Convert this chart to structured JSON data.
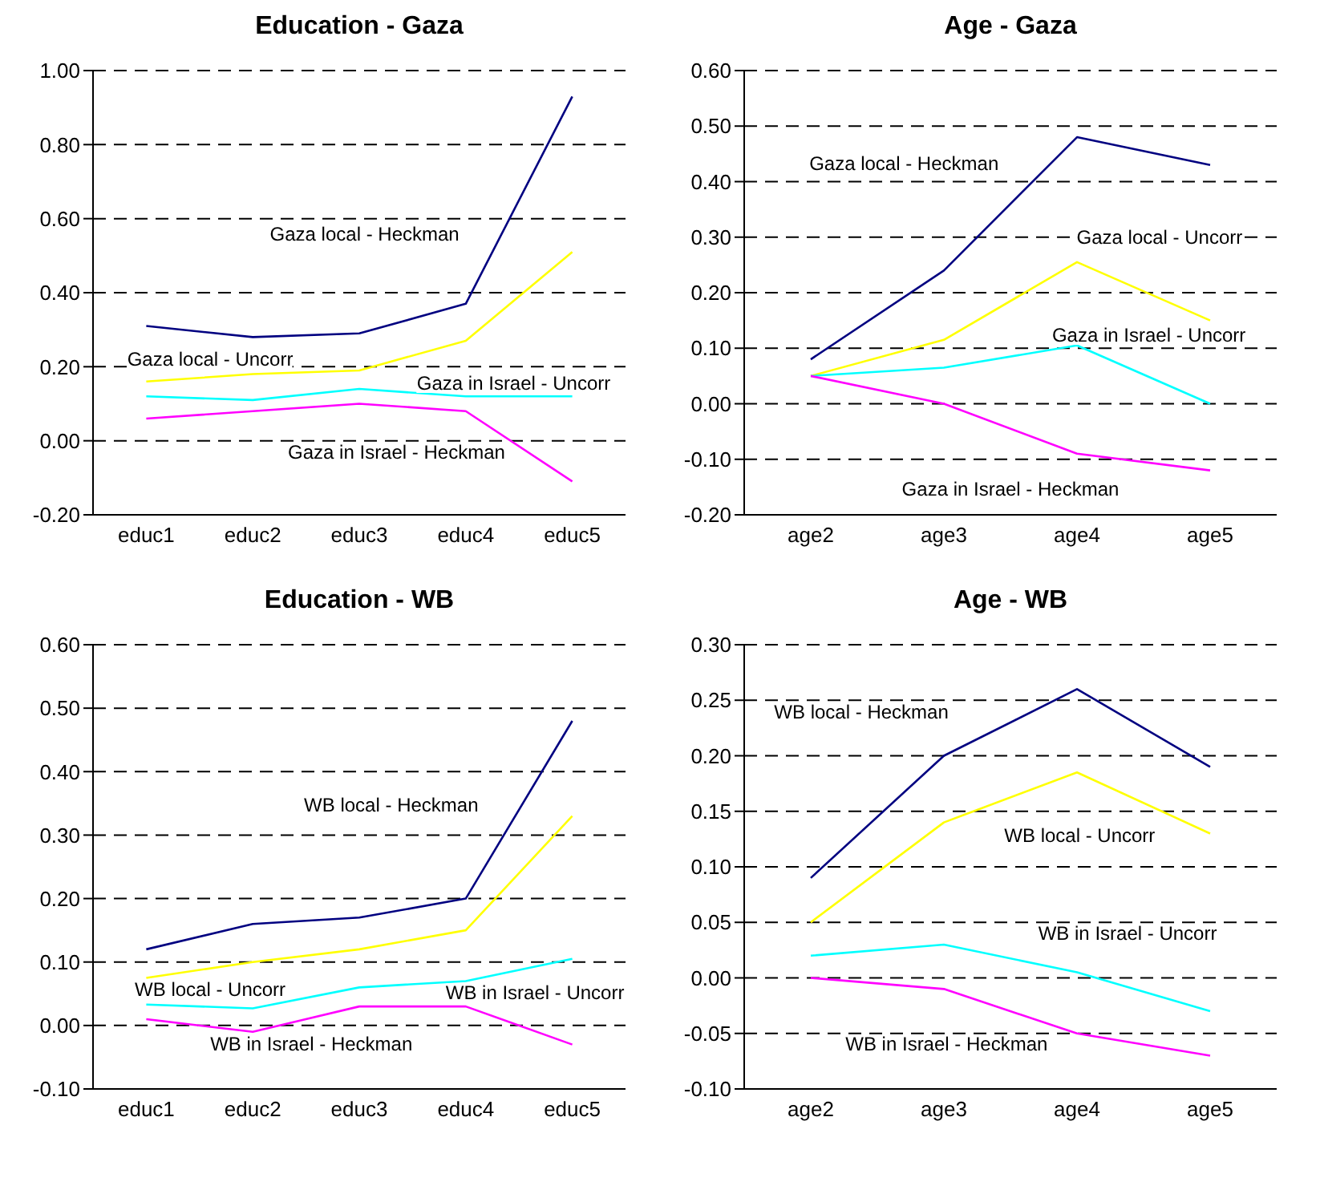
{
  "chart_data": [
    {
      "type": "line",
      "title": "Education - Gaza",
      "categories": [
        "educ1",
        "educ2",
        "educ3",
        "educ4",
        "educ5"
      ],
      "ylim": [
        -0.2,
        1.0
      ],
      "yticks": [
        {
          "value": -0.2,
          "label": "-0.20"
        },
        {
          "value": 0,
          "label": "0.00"
        },
        {
          "value": 0.2,
          "label": "0.20"
        },
        {
          "value": 0.4,
          "label": "0.40"
        },
        {
          "value": 0.6,
          "label": "0.60"
        },
        {
          "value": 0.8,
          "label": "0.80"
        },
        {
          "value": 1.0,
          "label": "1.00"
        }
      ],
      "grid": "y",
      "legend": false,
      "marker": "none",
      "line_style": "solid",
      "series": [
        {
          "name": "Gaza local - Heckman",
          "color": "#000080",
          "values": [
            0.31,
            0.28,
            0.29,
            0.37,
            0.93
          ]
        },
        {
          "name": "Gaza local - Uncorr",
          "color": "#ffff00",
          "values": [
            0.16,
            0.18,
            0.19,
            0.27,
            0.51
          ]
        },
        {
          "name": "Gaza in Israel - Uncorr",
          "color": "#00ffff",
          "values": [
            0.12,
            0.11,
            0.14,
            0.12,
            0.12
          ]
        },
        {
          "name": "Gaza in Israel - Heckman",
          "color": "#ff00ff",
          "values": [
            0.06,
            0.08,
            0.1,
            0.08,
            -0.11
          ]
        }
      ]
    },
    {
      "type": "line",
      "title": "Age - Gaza",
      "categories": [
        "age2",
        "age3",
        "age4",
        "age5"
      ],
      "ylim": [
        -0.2,
        0.6
      ],
      "yticks": [
        {
          "value": -0.2,
          "label": "-0.20"
        },
        {
          "value": -0.1,
          "label": "-0.10"
        },
        {
          "value": 0,
          "label": "0.00"
        },
        {
          "value": 0.1,
          "label": "0.10"
        },
        {
          "value": 0.2,
          "label": "0.20"
        },
        {
          "value": 0.3,
          "label": "0.30"
        },
        {
          "value": 0.4,
          "label": "0.40"
        },
        {
          "value": 0.5,
          "label": "0.50"
        },
        {
          "value": 0.6,
          "label": "0.60"
        }
      ],
      "grid": "y",
      "legend": false,
      "marker": "none",
      "line_style": "solid",
      "series": [
        {
          "name": "Gaza local - Heckman",
          "color": "#000080",
          "values": [
            0.08,
            0.24,
            0.48,
            0.43
          ]
        },
        {
          "name": "Gaza local - Uncorr",
          "color": "#ffff00",
          "values": [
            0.05,
            0.115,
            0.255,
            0.15
          ]
        },
        {
          "name": "Gaza in Israel - Uncorr",
          "color": "#00ffff",
          "values": [
            0.05,
            0.065,
            0.105,
            0.0
          ]
        },
        {
          "name": "Gaza in Israel - Heckman",
          "color": "#ff00ff",
          "values": [
            0.05,
            0.0,
            -0.09,
            -0.12
          ]
        }
      ]
    },
    {
      "type": "line",
      "title": "Education - WB",
      "categories": [
        "educ1",
        "educ2",
        "educ3",
        "educ4",
        "educ5"
      ],
      "ylim": [
        -0.1,
        0.6
      ],
      "yticks": [
        {
          "value": -0.1,
          "label": "-0.10"
        },
        {
          "value": 0,
          "label": "0.00"
        },
        {
          "value": 0.1,
          "label": "0.10"
        },
        {
          "value": 0.2,
          "label": "0.20"
        },
        {
          "value": 0.3,
          "label": "0.30"
        },
        {
          "value": 0.4,
          "label": "0.40"
        },
        {
          "value": 0.5,
          "label": "0.50"
        },
        {
          "value": 0.6,
          "label": "0.60"
        }
      ],
      "grid": "y",
      "legend": false,
      "marker": "none",
      "line_style": "solid",
      "series": [
        {
          "name": "WB local - Heckman",
          "color": "#000080",
          "values": [
            0.12,
            0.16,
            0.17,
            0.2,
            0.48
          ]
        },
        {
          "name": "WB local - Uncorr",
          "color": "#ffff00",
          "values": [
            0.075,
            0.1,
            0.12,
            0.15,
            0.33
          ]
        },
        {
          "name": "WB in Israel - Uncorr",
          "color": "#00ffff",
          "values": [
            0.033,
            0.027,
            0.06,
            0.07,
            0.105
          ]
        },
        {
          "name": "WB in Israel - Heckman",
          "color": "#ff00ff",
          "values": [
            0.01,
            -0.01,
            0.03,
            0.03,
            -0.03
          ]
        }
      ]
    },
    {
      "type": "line",
      "title": "Age - WB",
      "categories": [
        "age2",
        "age3",
        "age4",
        "age5"
      ],
      "ylim": [
        -0.1,
        0.3
      ],
      "yticks": [
        {
          "value": -0.1,
          "label": "-0.10"
        },
        {
          "value": -0.05,
          "label": "-0.05"
        },
        {
          "value": 0,
          "label": "0.00"
        },
        {
          "value": 0.05,
          "label": "0.05"
        },
        {
          "value": 0.1,
          "label": "0.10"
        },
        {
          "value": 0.15,
          "label": "0.15"
        },
        {
          "value": 0.2,
          "label": "0.20"
        },
        {
          "value": 0.25,
          "label": "0.25"
        },
        {
          "value": 0.3,
          "label": "0.30"
        }
      ],
      "grid": "y",
      "legend": false,
      "marker": "none",
      "line_style": "solid",
      "series": [
        {
          "name": "WB local - Heckman",
          "color": "#000080",
          "values": [
            0.09,
            0.2,
            0.26,
            0.19
          ]
        },
        {
          "name": "WB local - Uncorr",
          "color": "#ffff00",
          "values": [
            0.05,
            0.14,
            0.185,
            0.13
          ]
        },
        {
          "name": "WB in Israel - Uncorr",
          "color": "#00ffff",
          "values": [
            0.02,
            0.03,
            0.005,
            -0.03
          ]
        },
        {
          "name": "WB in Israel - Heckman",
          "color": "#ff00ff",
          "values": [
            0.0,
            -0.01,
            -0.05,
            -0.07
          ]
        }
      ]
    }
  ]
}
